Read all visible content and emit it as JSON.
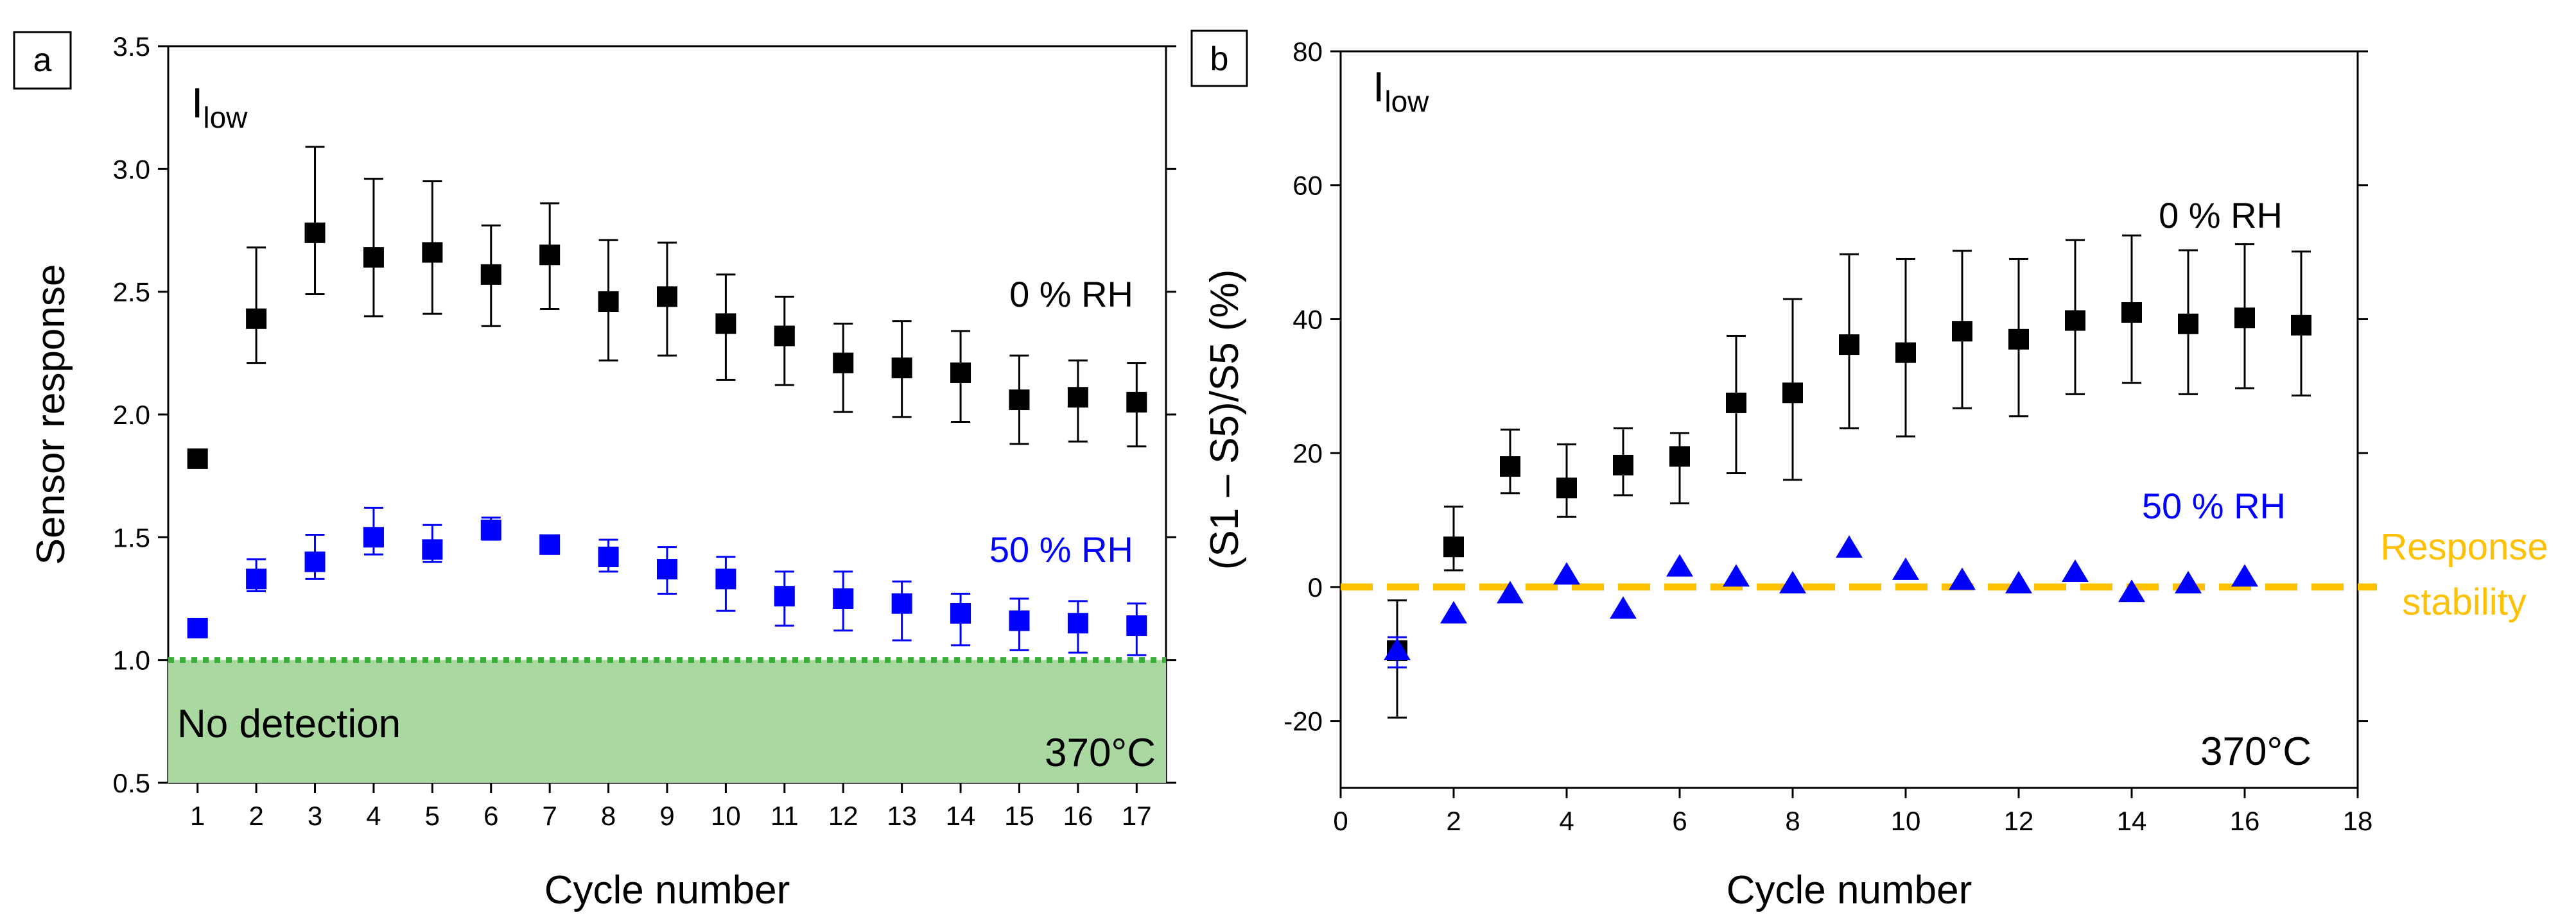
{
  "chart_data": [
    {
      "panel_label": "a",
      "type": "scatter",
      "annotation_main": "I",
      "annotation_sub": "low",
      "xlabel": "Cycle number",
      "ylabel": "Sensor response",
      "xlim": [
        0.5,
        17.5
      ],
      "ylim": [
        0.5,
        3.5
      ],
      "xticks": [
        1,
        2,
        3,
        4,
        5,
        6,
        7,
        8,
        9,
        10,
        11,
        12,
        13,
        14,
        15,
        16,
        17
      ],
      "yticks": [
        0.5,
        1.0,
        1.5,
        2.0,
        2.5,
        3.0,
        3.5
      ],
      "ytick_labels": [
        "0.5",
        "1.0",
        "1.5",
        "2.0",
        "2.5",
        "3.0",
        "3.5"
      ],
      "threshold": {
        "value": 1.0,
        "label": "No detection",
        "color": "#a9d8a0",
        "line_color": "#3cae3c"
      },
      "temperature_label": "370°C",
      "series": [
        {
          "name": "0 % RH",
          "color": "#000000",
          "marker": "square",
          "x": [
            1,
            2,
            3,
            4,
            5,
            6,
            7,
            8,
            9,
            10,
            11,
            12,
            13,
            14,
            15,
            16,
            17
          ],
          "y": [
            1.82,
            2.39,
            2.74,
            2.64,
            2.66,
            2.57,
            2.65,
            2.46,
            2.48,
            2.37,
            2.32,
            2.21,
            2.19,
            2.17,
            2.06,
            2.07,
            2.05
          ],
          "err_low": [
            0.02,
            0.18,
            0.25,
            0.24,
            0.25,
            0.21,
            0.22,
            0.24,
            0.24,
            0.23,
            0.2,
            0.2,
            0.2,
            0.2,
            0.18,
            0.18,
            0.18
          ],
          "err_high": [
            0.02,
            0.29,
            0.35,
            0.32,
            0.29,
            0.2,
            0.21,
            0.25,
            0.22,
            0.2,
            0.16,
            0.16,
            0.19,
            0.17,
            0.18,
            0.15,
            0.16
          ]
        },
        {
          "name": "50 % RH",
          "color": "#0000ff",
          "marker": "square",
          "x": [
            1,
            2,
            3,
            4,
            5,
            6,
            7,
            8,
            9,
            10,
            11,
            12,
            13,
            14,
            15,
            16,
            17
          ],
          "y": [
            1.13,
            1.33,
            1.4,
            1.5,
            1.45,
            1.53,
            1.47,
            1.42,
            1.37,
            1.33,
            1.26,
            1.25,
            1.23,
            1.19,
            1.16,
            1.15,
            1.14
          ],
          "err_low": [
            0.02,
            0.05,
            0.07,
            0.07,
            0.05,
            0.04,
            0.02,
            0.06,
            0.1,
            0.13,
            0.12,
            0.13,
            0.15,
            0.13,
            0.12,
            0.12,
            0.12
          ],
          "err_high": [
            0.02,
            0.08,
            0.11,
            0.12,
            0.1,
            0.05,
            0.02,
            0.07,
            0.09,
            0.09,
            0.1,
            0.11,
            0.09,
            0.08,
            0.09,
            0.09,
            0.09
          ]
        }
      ],
      "series_labels": [
        "0 % RH",
        "50 % RH"
      ]
    },
    {
      "panel_label": "b",
      "type": "scatter",
      "annotation_main": "I",
      "annotation_sub": "low",
      "xlabel": "Cycle number",
      "ylabel": "(S1 – S5)/S5 (%)",
      "xlim": [
        0,
        18
      ],
      "ylim": [
        -30,
        80
      ],
      "xticks": [
        0,
        2,
        4,
        6,
        8,
        10,
        12,
        14,
        16,
        18
      ],
      "yticks": [
        -20,
        0,
        20,
        40,
        60,
        80
      ],
      "reference_line": {
        "value": 0,
        "label_line1": "Response",
        "label_line2": "stability",
        "color": "#ffc000"
      },
      "temperature_label": "370°C",
      "series": [
        {
          "name": "0 % RH",
          "color": "#000000",
          "marker": "square",
          "x": [
            1,
            2,
            3,
            4,
            5,
            6,
            7,
            8,
            9,
            10,
            11,
            12,
            13,
            14,
            15,
            16,
            17
          ],
          "y": [
            -9.5,
            6,
            18,
            14.8,
            18.2,
            19.5,
            27.5,
            29,
            36.2,
            35,
            38.2,
            37,
            39.8,
            41,
            39.3,
            40.2,
            39.1
          ],
          "err_low": [
            10,
            3.5,
            4,
            4.3,
            4.5,
            7,
            10.5,
            13,
            12.5,
            12.5,
            11.5,
            11.5,
            11,
            10.5,
            10.5,
            10.5,
            10.5
          ],
          "err_high": [
            7.5,
            6,
            5.5,
            6.5,
            5.5,
            3.5,
            10,
            14,
            13.5,
            14,
            12,
            12,
            12,
            11.5,
            11,
            11,
            11
          ]
        },
        {
          "name": "50 % RH",
          "color": "#0000ff",
          "marker": "triangle",
          "x": [
            1,
            2,
            3,
            4,
            5,
            6,
            7,
            8,
            9,
            10,
            11,
            12,
            13,
            14,
            15,
            16
          ],
          "y": [
            -9.5,
            -4,
            -1,
            1.8,
            -3.3,
            3,
            1.5,
            0.5,
            5.8,
            2.5,
            1,
            0.5,
            2.2,
            -0.8,
            0.5,
            1.5
          ],
          "err_low": [
            2.5,
            0,
            0,
            0,
            0,
            0,
            0,
            0,
            0,
            0,
            0,
            0,
            0,
            0,
            0,
            0
          ],
          "err_high": [
            2,
            0,
            0,
            0,
            0,
            0,
            0,
            0,
            0,
            0,
            0,
            0,
            0,
            0,
            0,
            0
          ]
        }
      ],
      "series_labels": [
        "0 % RH",
        "50 % RH"
      ]
    }
  ]
}
